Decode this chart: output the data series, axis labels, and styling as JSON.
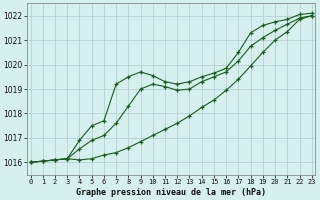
{
  "title": "Graphe pression niveau de la mer (hPa)",
  "bg_color": "#d6f0f0",
  "grid_color": "#b0cccc",
  "line_color": "#1a5c1a",
  "x_labels": [
    "0",
    "1",
    "2",
    "3",
    "4",
    "5",
    "6",
    "7",
    "8",
    "9",
    "10",
    "11",
    "12",
    "13",
    "14",
    "15",
    "16",
    "17",
    "18",
    "19",
    "20",
    "21",
    "22",
    "23"
  ],
  "ylim": [
    1015.5,
    1022.5
  ],
  "yticks": [
    1016,
    1017,
    1018,
    1019,
    1020,
    1021,
    1022
  ],
  "series_top": [
    1016.0,
    1016.05,
    1016.1,
    1016.15,
    1016.9,
    1017.5,
    1017.7,
    1019.2,
    1019.5,
    1019.7,
    1019.55,
    1019.3,
    1019.2,
    1019.3,
    1019.5,
    1019.65,
    1019.85,
    1020.5,
    1021.3,
    1021.6,
    1021.75,
    1021.85,
    1022.05,
    1022.1
  ],
  "series_mid": [
    1016.0,
    1016.05,
    1016.1,
    1016.15,
    1016.55,
    1016.9,
    1017.1,
    1017.6,
    1018.3,
    1019.0,
    1019.2,
    1019.1,
    1018.95,
    1019.0,
    1019.3,
    1019.5,
    1019.7,
    1020.15,
    1020.75,
    1021.1,
    1021.4,
    1021.65,
    1021.9,
    1022.0
  ],
  "series_bot": [
    1016.0,
    1016.05,
    1016.1,
    1016.15,
    1016.1,
    1016.15,
    1016.3,
    1016.4,
    1016.6,
    1016.85,
    1017.1,
    1017.35,
    1017.6,
    1017.9,
    1018.25,
    1018.55,
    1018.95,
    1019.4,
    1019.95,
    1020.5,
    1021.0,
    1021.35,
    1021.85,
    1022.0
  ]
}
